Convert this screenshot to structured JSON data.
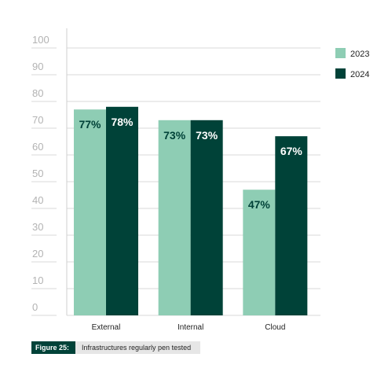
{
  "chart_data": {
    "type": "bar",
    "categories": [
      "External",
      "Internal",
      "Cloud"
    ],
    "series": [
      {
        "name": "2023",
        "values": [
          77,
          73,
          47
        ],
        "labels": [
          "77%",
          "73%",
          "47%"
        ],
        "color": "#8ecdb4",
        "label_color": "#004238"
      },
      {
        "name": "2024",
        "values": [
          78,
          73,
          67
        ],
        "labels": [
          "78%",
          "73%",
          "67%"
        ],
        "color": "#004238",
        "label_color": "#ffffff"
      }
    ],
    "yticks": [
      "0",
      "10",
      "20",
      "30",
      "40",
      "50",
      "60",
      "70",
      "80",
      "90",
      "100"
    ],
    "ylim": [
      0,
      100
    ],
    "grid": true,
    "legend_position": "top-right"
  },
  "caption": {
    "tag": "Figure 25:",
    "text": "Infrastructures regularly pen tested"
  },
  "colors": {
    "dark_green": "#004238",
    "light_green": "#8ecdb4",
    "grid": "#d9d9d9",
    "tick_text": "#b3b3b3"
  }
}
